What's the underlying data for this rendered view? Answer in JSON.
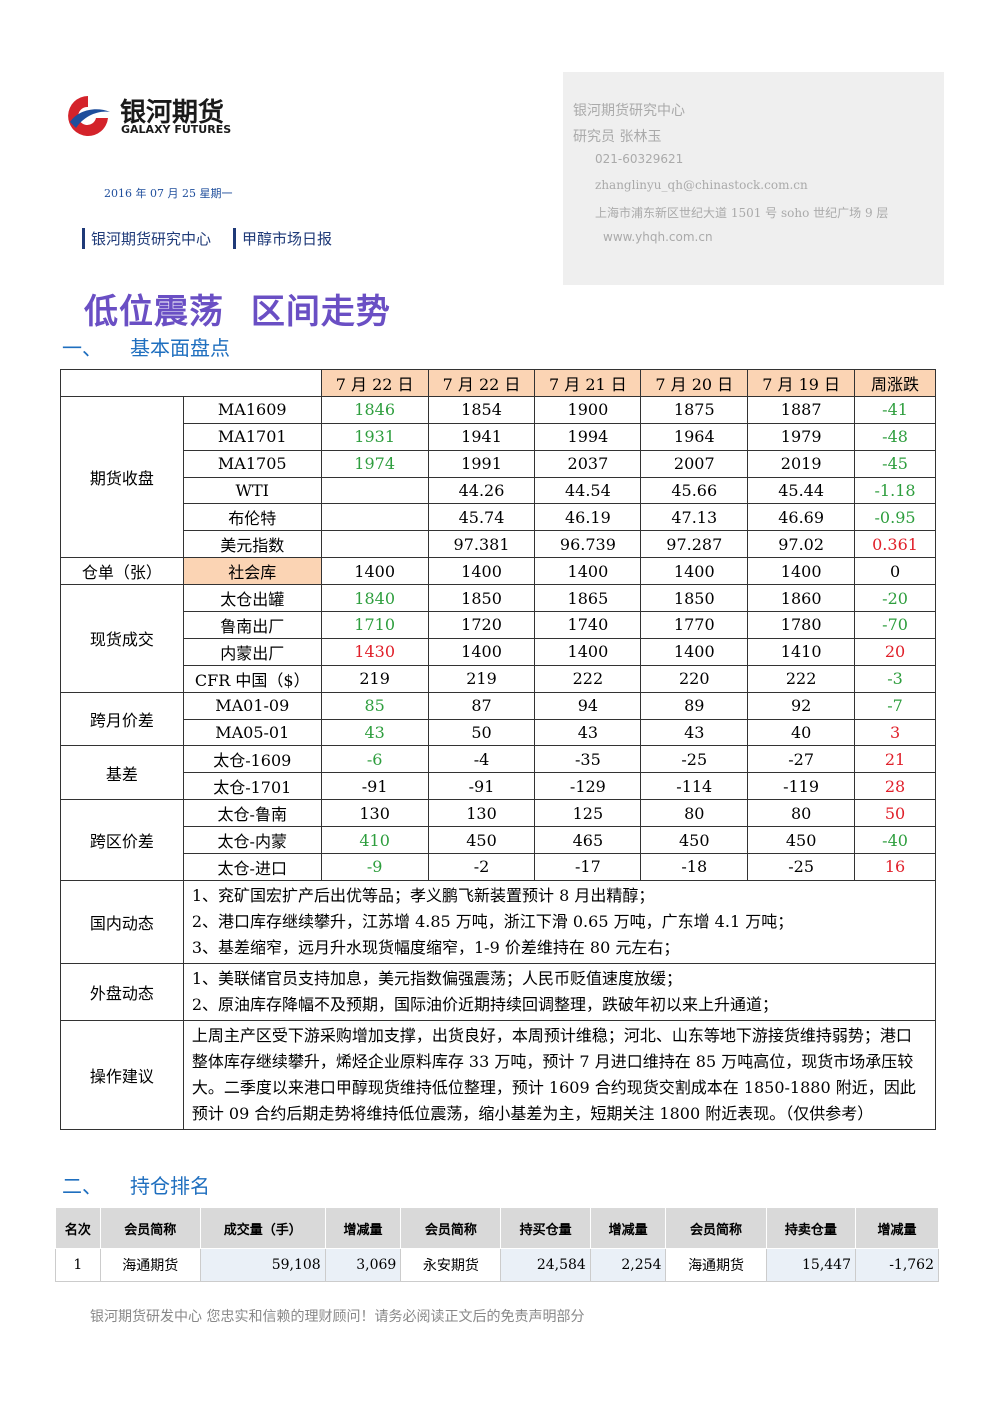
{
  "header": {
    "logo_cn": "银河期货",
    "logo_en": "GALAXY FUTURES",
    "date": "2016 年 07 月 25 星期一",
    "breadcrumb": [
      "银河期货研究中心",
      "甲醇市场日报"
    ]
  },
  "contact": {
    "org": "银河期货研究中心",
    "researcher": "研究员 张林玉",
    "phone": "021-60329621",
    "email": "zhanglinyu_qh@chinastock.com.cn",
    "address": "上海市浦东新区世纪大道 1501 号 soho 世纪广场 9 层",
    "web": "www.yhqh.com.cn"
  },
  "title": "低位震荡 区间走势",
  "fundamentals": {
    "section_no": "一、",
    "section_title": "基本面盘点",
    "header": [
      "7 月 22 日",
      "7 月 22 日",
      "7 月 21 日",
      "7 月 20 日",
      "7 月 19 日",
      "周涨跌"
    ],
    "groups": [
      {
        "name": "期货收盘",
        "rows": [
          {
            "label": "MA1609",
            "cells": [
              "1846",
              "1854",
              "1900",
              "1875",
              "1887",
              "-41"
            ],
            "first_color": "#2e9e3e",
            "change_color": "#2e9e3e"
          },
          {
            "label": "MA1701",
            "cells": [
              "1931",
              "1941",
              "1994",
              "1964",
              "1979",
              "-48"
            ],
            "first_color": "#2e9e3e",
            "change_color": "#2e9e3e"
          },
          {
            "label": "MA1705",
            "cells": [
              "1974",
              "1991",
              "2037",
              "2007",
              "2019",
              "-45"
            ],
            "first_color": "#2e9e3e",
            "change_color": "#2e9e3e"
          },
          {
            "label": "WTI",
            "cells": [
              null,
              "44.26",
              "44.54",
              "45.66",
              "45.44",
              "-1.18"
            ],
            "first_color": "#000000",
            "change_color": "#2e9e3e"
          },
          {
            "label": "布伦特",
            "cells": [
              null,
              "45.74",
              "46.19",
              "47.13",
              "46.69",
              "-0.95"
            ],
            "first_color": "#000000",
            "change_color": "#2e9e3e"
          },
          {
            "label": "美元指数",
            "cells": [
              null,
              "97.381",
              "96.739",
              "97.287",
              "97.02",
              "0.361"
            ],
            "first_color": "#000000",
            "change_color": "#e0202a"
          }
        ]
      },
      {
        "name": "仓单（张）",
        "highlight": "#fbd4b4",
        "rows": [
          {
            "label": "社会库",
            "cells": [
              "1400",
              "1400",
              "1400",
              "1400",
              "1400",
              "0"
            ],
            "first_color": "#000000",
            "change_color": "#000000"
          }
        ]
      },
      {
        "name": "现货成交",
        "rows": [
          {
            "label": "太仓出罐",
            "cells": [
              "1840",
              "1850",
              "1865",
              "1850",
              "1860",
              "-20"
            ],
            "first_color": "#2e9e3e",
            "change_color": "#2e9e3e"
          },
          {
            "label": "鲁南出厂",
            "cells": [
              "1710",
              "1720",
              "1740",
              "1770",
              "1780",
              "-70"
            ],
            "first_color": "#2e9e3e",
            "change_color": "#2e9e3e"
          },
          {
            "label": "内蒙出厂",
            "cells": [
              "1430",
              "1400",
              "1400",
              "1400",
              "1410",
              "20"
            ],
            "first_color": "#e0202a",
            "change_color": "#e0202a"
          },
          {
            "label": "CFR 中国（$）",
            "cells": [
              "219",
              "219",
              "222",
              "220",
              "222",
              "-3"
            ],
            "first_color": "#000000",
            "change_color": "#2e9e3e"
          }
        ]
      },
      {
        "name": "跨月价差",
        "rows": [
          {
            "label": "MA01-09",
            "cells": [
              "85",
              "87",
              "94",
              "89",
              "92",
              "-7"
            ],
            "first_color": "#2e9e3e",
            "change_color": "#2e9e3e"
          },
          {
            "label": "MA05-01",
            "cells": [
              "43",
              "50",
              "43",
              "43",
              "40",
              "3"
            ],
            "first_color": "#2e9e3e",
            "change_color": "#e0202a"
          }
        ]
      },
      {
        "name": "基差",
        "rows": [
          {
            "label": "太仓-1609",
            "cells": [
              "-6",
              "-4",
              "-35",
              "-25",
              "-27",
              "21"
            ],
            "first_color": "#2e9e3e",
            "change_color": "#e0202a"
          },
          {
            "label": "太仓-1701",
            "cells": [
              "-91",
              "-91",
              "-129",
              "-114",
              "-119",
              "28"
            ],
            "first_color": "#000000",
            "change_color": "#e0202a"
          }
        ]
      },
      {
        "name": "跨区价差",
        "rows": [
          {
            "label": "太仓-鲁南",
            "cells": [
              "130",
              "130",
              "125",
              "80",
              "80",
              "50"
            ],
            "first_color": "#000000",
            "change_color": "#e0202a"
          },
          {
            "label": "太仓-内蒙",
            "cells": [
              "410",
              "450",
              "465",
              "450",
              "450",
              "-40"
            ],
            "first_color": "#2e9e3e",
            "change_color": "#2e9e3e"
          },
          {
            "label": "太仓-进口",
            "cells": [
              "-9",
              "-2",
              "-17",
              "-18",
              "-25",
              "16"
            ],
            "first_color": "#2e9e3e",
            "change_color": "#e0202a"
          }
        ]
      }
    ],
    "notes": [
      {
        "name": "国内动态",
        "lines": [
          "1、兖矿国宏扩产后出优等品；孝义鹏飞新装置预计 8 月出精醇；",
          "2、港口库存继续攀升，江苏增 4.85 万吨，浙江下滑 0.65 万吨，广东增 4.1 万吨；",
          "3、基差缩窄，远月升水现货幅度缩窄，1-9 价差维持在 80 元左右；"
        ]
      },
      {
        "name": "外盘动态",
        "lines": [
          "1、美联储官员支持加息，美元指数偏强震荡；人民币贬值速度放缓；",
          "2、原油库存降幅不及预期，国际油价近期持续回调整理，跌破年初以来上升通道；"
        ]
      },
      {
        "name": "操作建议",
        "lines": [
          "上周主产区受下游采购增加支撑，出货良好，本周预计维稳；河北、山东等地下游接货维持弱势；港口整体库存继续攀升，烯烃企业原料库存 33 万吨，预计 7 月进口维持在 85 万吨高位，现货市场承压较大。二季度以来港口甲醇现货维持低位整理，预计 1609 合约现货交割成本在 1850-1880 附近，因此预计 09 合约后期走势将维持低位震荡，缩小基差为主，短期关注 1800 附近表现。（仅供参考）"
        ]
      }
    ]
  },
  "positions": {
    "section_no": "二、",
    "section_title": "持仓排名",
    "header": [
      "名次",
      "会员简称",
      "成交量（手）",
      "增减量",
      "会员简称",
      "持买仓量",
      "增减量",
      "会员简称",
      "持卖仓量",
      "增减量"
    ],
    "rows": [
      [
        "1",
        "海通期货",
        "59,108",
        "3,069",
        "永安期货",
        "24,584",
        "2,254",
        "海通期货",
        "15,447",
        "-1,762"
      ]
    ]
  },
  "footer": "银河期货研发中心 您忠实和信赖的理财顾问！请务必阅读正文后的免责声明部分"
}
